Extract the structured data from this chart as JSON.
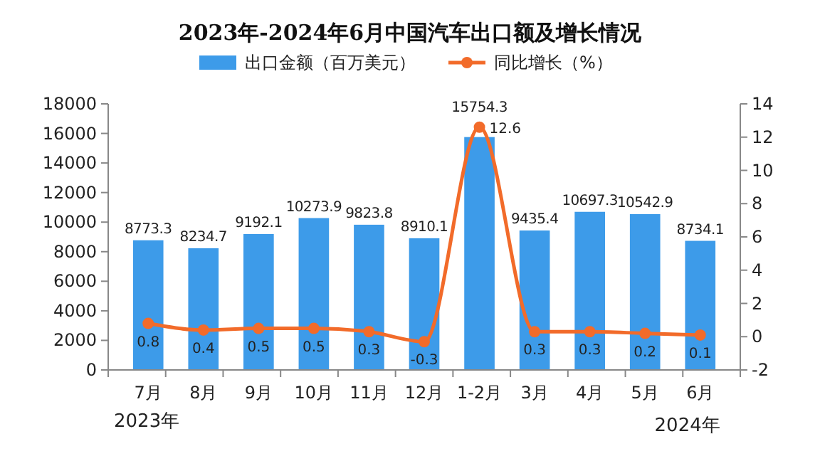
{
  "chart_data": {
    "type": "bar",
    "title": "2023年-2024年6月中国汽车出口额及增长情况",
    "categories": [
      "7月",
      "8月",
      "9月",
      "10月",
      "11月",
      "12月",
      "1-2月",
      "3月",
      "4月",
      "5月",
      "6月"
    ],
    "series": [
      {
        "name": "出口金额（百万美元）",
        "color": "#3d9be9",
        "values": [
          8773.3,
          8234.7,
          9192.1,
          10273.9,
          9823.8,
          8910.1,
          15754.3,
          9435.4,
          10697.3,
          10542.9,
          8734.1
        ]
      },
      {
        "name": "同比增长（%）",
        "type": "line",
        "axis": "y2",
        "color": "#f26b2a",
        "marker": "circle",
        "values": [
          0.8,
          0.4,
          0.5,
          0.5,
          0.3,
          -0.3,
          12.6,
          0.3,
          0.3,
          0.2,
          0.1
        ]
      }
    ],
    "ylim": [
      0,
      18000
    ],
    "yticks": [
      0,
      2000,
      4000,
      6000,
      8000,
      10000,
      12000,
      14000,
      16000,
      18000
    ],
    "y2lim": [
      -2,
      14
    ],
    "y2ticks": [
      -2,
      0,
      2,
      4,
      6,
      8,
      10,
      12,
      14
    ],
    "data_labels": true,
    "legend": "top",
    "grid": false,
    "annotations": [
      "2023年",
      "2024年"
    ]
  }
}
